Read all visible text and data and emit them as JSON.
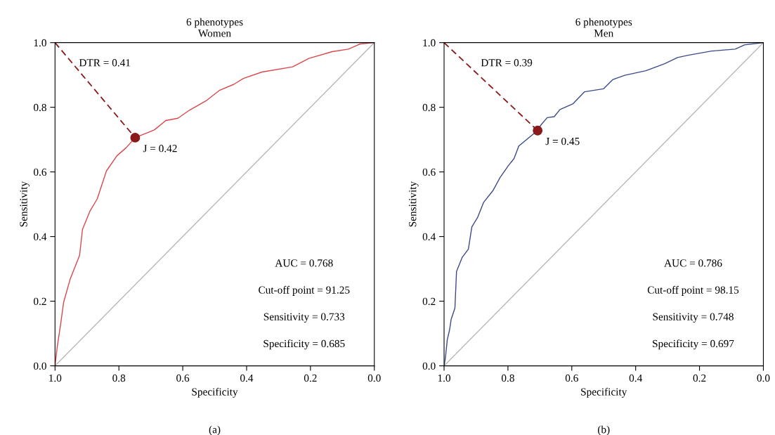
{
  "chart_data": [
    {
      "type": "line",
      "title": "6 phenotypes",
      "subtitle": "Women",
      "xlabel": "Specificity",
      "ylabel": "Sensitivity",
      "xlim": [
        1.0,
        0.0
      ],
      "ylim": [
        0.0,
        1.0
      ],
      "xticks": [
        {
          "value": 1.0,
          "label": "1.0"
        },
        {
          "value": 0.8,
          "label": "0.8"
        },
        {
          "value": 0.6,
          "label": "0.6"
        },
        {
          "value": 0.4,
          "label": "0.4"
        },
        {
          "value": 0.2,
          "label": "0.2"
        },
        {
          "value": 0.0,
          "label": "0.0"
        }
      ],
      "yticks": [
        {
          "value": 0.0,
          "label": "0.0"
        },
        {
          "value": 0.2,
          "label": "0.2"
        },
        {
          "value": 0.4,
          "label": "0.4"
        },
        {
          "value": 0.6,
          "label": "0.6"
        },
        {
          "value": 0.8,
          "label": "0.8"
        },
        {
          "value": 1.0,
          "label": "1.0"
        }
      ],
      "grid": false,
      "series": [
        {
          "color": "#b8b8b8",
          "x": [
            1.0,
            0.0
          ],
          "values": [
            0.0,
            1.0
          ]
        },
        {
          "color": "#d9474a",
          "x": [
            1.0,
            0.993,
            0.983,
            0.973,
            0.952,
            0.923,
            0.914,
            0.89,
            0.868,
            0.839,
            0.806,
            0.777,
            0.749,
            0.689,
            0.653,
            0.615,
            0.579,
            0.527,
            0.484,
            0.44,
            0.41,
            0.352,
            0.256,
            0.205,
            0.132,
            0.081,
            0.044,
            0.0
          ],
          "values": [
            0.0,
            0.059,
            0.125,
            0.197,
            0.27,
            0.342,
            0.422,
            0.48,
            0.516,
            0.603,
            0.65,
            0.675,
            0.706,
            0.73,
            0.759,
            0.766,
            0.791,
            0.82,
            0.853,
            0.871,
            0.889,
            0.909,
            0.925,
            0.951,
            0.972,
            0.98,
            0.996,
            1.0
          ]
        },
        {
          "color": "#8b1a1a",
          "line_style": "dashed",
          "x": [
            1.0,
            0.749
          ],
          "values": [
            1.0,
            0.706
          ]
        },
        {
          "type": "scatter",
          "color": "#8b1a1a",
          "marker": "circle",
          "x": [
            0.749
          ],
          "values": [
            0.706
          ]
        }
      ],
      "annotations": [
        "DTR = 0.41",
        "J = 0.42",
        "AUC = 0.768",
        "Cut-off point = 91.25",
        "Sensitivity = 0.733",
        "Specificity = 0.685",
        "(a)"
      ]
    },
    {
      "type": "line",
      "title": "6 phenotypes",
      "subtitle": "Men",
      "xlabel": "Specificity",
      "ylabel": "Sensitivity",
      "xlim": [
        1.0,
        0.0
      ],
      "ylim": [
        0.0,
        1.0
      ],
      "xticks": [
        {
          "value": 1.0,
          "label": "1.0"
        },
        {
          "value": 0.8,
          "label": "0.8"
        },
        {
          "value": 0.6,
          "label": "0.6"
        },
        {
          "value": 0.4,
          "label": "0.4"
        },
        {
          "value": 0.2,
          "label": "0.2"
        },
        {
          "value": 0.0,
          "label": "0.0"
        }
      ],
      "yticks": [
        {
          "value": 0.0,
          "label": "0.0"
        },
        {
          "value": 0.2,
          "label": "0.2"
        },
        {
          "value": 0.4,
          "label": "0.4"
        },
        {
          "value": 0.6,
          "label": "0.6"
        },
        {
          "value": 0.8,
          "label": "0.8"
        },
        {
          "value": 1.0,
          "label": "1.0"
        }
      ],
      "grid": false,
      "series": [
        {
          "color": "#b8b8b8",
          "x": [
            1.0,
            0.0
          ],
          "values": [
            0.0,
            1.0
          ]
        },
        {
          "color": "#3d4a8a",
          "x": [
            1.0,
            0.996,
            0.99,
            0.983,
            0.978,
            0.966,
            0.961,
            0.943,
            0.924,
            0.913,
            0.895,
            0.876,
            0.847,
            0.825,
            0.799,
            0.781,
            0.766,
            0.707,
            0.696,
            0.677,
            0.655,
            0.637,
            0.596,
            0.56,
            0.501,
            0.471,
            0.434,
            0.368,
            0.309,
            0.269,
            0.236,
            0.162,
            0.088,
            0.059,
            0.0
          ],
          "values": [
            0.0,
            0.023,
            0.081,
            0.11,
            0.143,
            0.179,
            0.292,
            0.336,
            0.361,
            0.43,
            0.459,
            0.506,
            0.542,
            0.582,
            0.619,
            0.641,
            0.68,
            0.728,
            0.746,
            0.768,
            0.771,
            0.793,
            0.811,
            0.848,
            0.857,
            0.886,
            0.899,
            0.913,
            0.935,
            0.954,
            0.961,
            0.974,
            0.98,
            0.993,
            1.0
          ]
        },
        {
          "color": "#8b1a1a",
          "line_style": "dashed",
          "x": [
            1.0,
            0.707
          ],
          "values": [
            1.0,
            0.728
          ]
        },
        {
          "type": "scatter",
          "color": "#8b1a1a",
          "marker": "circle",
          "x": [
            0.707
          ],
          "values": [
            0.728
          ]
        }
      ],
      "annotations": [
        "DTR = 0.39",
        "J = 0.45",
        "AUC = 0.786",
        "Cut-off point = 98.15",
        "Sensitivity = 0.748",
        "Specificity = 0.697",
        "(b)"
      ]
    }
  ]
}
